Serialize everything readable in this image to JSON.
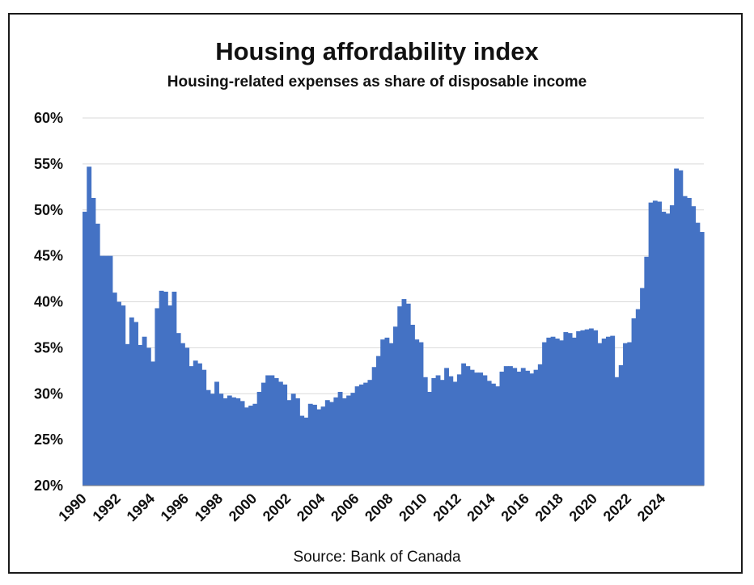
{
  "chart_data": {
    "type": "bar",
    "title": "Housing affordability index",
    "subtitle": "Housing-related expenses as share of disposable income",
    "source": "Source:  Bank of Canada",
    "xlabel": "",
    "ylabel": "",
    "ylim": [
      20,
      60
    ],
    "y_ticks": [
      "20%",
      "25%",
      "30%",
      "35%",
      "40%",
      "45%",
      "50%",
      "55%",
      "60%"
    ],
    "y_tick_values": [
      20,
      25,
      30,
      35,
      40,
      45,
      50,
      55,
      60
    ],
    "x_ticks": [
      "1990",
      "1992",
      "1994",
      "1996",
      "1998",
      "2000",
      "2002",
      "2004",
      "2006",
      "2008",
      "2010",
      "2012",
      "2014",
      "2016",
      "2018",
      "2020",
      "2022",
      "2024"
    ],
    "x_start_year": 1990,
    "periods_per_year": 4,
    "bar_color": "#4472C4",
    "grid": true,
    "series": [
      {
        "name": "Housing affordability index (%)",
        "values": [
          49.8,
          54.7,
          51.3,
          48.5,
          45.0,
          45.0,
          45.0,
          41.0,
          40.0,
          39.6,
          35.4,
          38.3,
          37.8,
          35.3,
          36.2,
          35.0,
          33.5,
          39.3,
          41.2,
          41.1,
          39.6,
          41.1,
          36.6,
          35.5,
          35.0,
          33.0,
          33.6,
          33.3,
          32.6,
          30.4,
          30.0,
          31.3,
          30.0,
          29.5,
          29.8,
          29.6,
          29.5,
          29.2,
          28.5,
          28.7,
          28.9,
          30.2,
          31.2,
          32.0,
          32.0,
          31.7,
          31.3,
          31.0,
          29.3,
          30.0,
          29.5,
          27.6,
          27.4,
          28.9,
          28.8,
          28.3,
          28.6,
          29.3,
          29.1,
          29.6,
          30.2,
          29.5,
          29.8,
          30.1,
          30.8,
          31.0,
          31.2,
          31.5,
          32.9,
          34.1,
          35.9,
          36.1,
          35.5,
          37.3,
          39.5,
          40.3,
          39.8,
          37.5,
          35.9,
          35.6,
          31.8,
          30.2,
          31.7,
          32.0,
          31.5,
          32.8,
          31.9,
          31.3,
          32.1,
          33.3,
          33.0,
          32.6,
          32.3,
          32.3,
          32.0,
          31.4,
          31.1,
          30.8,
          32.4,
          33.0,
          33.0,
          32.8,
          32.4,
          32.8,
          32.5,
          32.2,
          32.6,
          33.2,
          35.6,
          36.1,
          36.2,
          36.0,
          35.8,
          36.7,
          36.6,
          36.1,
          36.8,
          36.9,
          37.0,
          37.1,
          36.9,
          35.5,
          36.0,
          36.2,
          36.3,
          31.8,
          33.1,
          35.5,
          35.6,
          38.2,
          39.2,
          41.5,
          44.9,
          50.8,
          51.0,
          50.9,
          49.8,
          49.6,
          50.5,
          54.5,
          54.3,
          51.5,
          51.3,
          50.4,
          48.6,
          47.6
        ]
      }
    ]
  }
}
